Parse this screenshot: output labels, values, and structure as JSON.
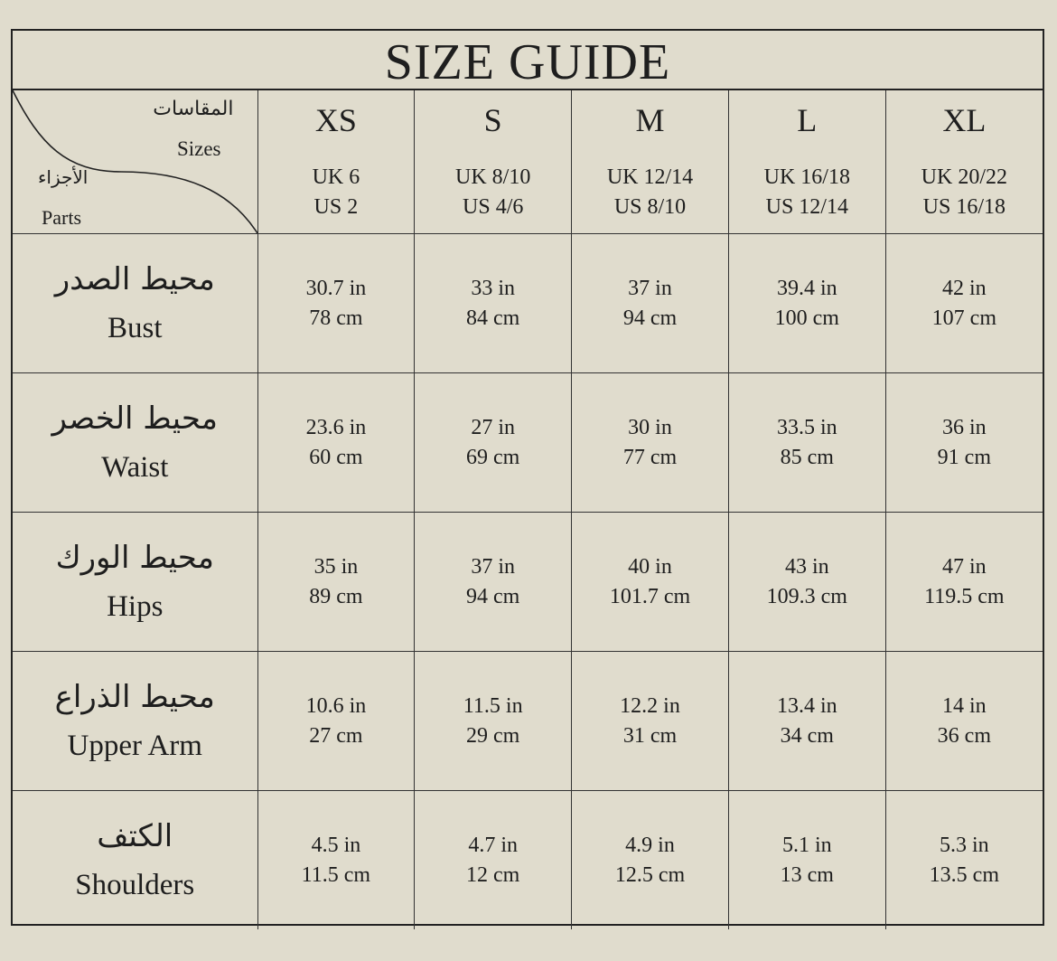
{
  "title": "SIZE GUIDE",
  "corner": {
    "sizes_ar": "المقاسات",
    "sizes_en": "Sizes",
    "parts_ar": "الأجزاء",
    "parts_en": "Parts"
  },
  "sizes": [
    {
      "label": "XS",
      "uk": "UK 6",
      "us": "US 2"
    },
    {
      "label": "S",
      "uk": "UK 8/10",
      "us": "US 4/6"
    },
    {
      "label": "M",
      "uk": "UK 12/14",
      "us": "US 8/10"
    },
    {
      "label": "L",
      "uk": "UK 16/18",
      "us": "US 12/14"
    },
    {
      "label": "XL",
      "uk": "UK 20/22",
      "us": "US 16/18"
    }
  ],
  "rows": [
    {
      "ar": "محيط الصدر",
      "en": "Bust",
      "values": [
        [
          "30.7 in",
          "78 cm"
        ],
        [
          "33 in",
          "84 cm"
        ],
        [
          "37 in",
          "94 cm"
        ],
        [
          "39.4 in",
          "100 cm"
        ],
        [
          "42 in",
          "107 cm"
        ]
      ]
    },
    {
      "ar": "محيط الخصر",
      "en": "Waist",
      "values": [
        [
          "23.6 in",
          "60 cm"
        ],
        [
          "27 in",
          "69 cm"
        ],
        [
          "30 in",
          "77 cm"
        ],
        [
          "33.5 in",
          "85 cm"
        ],
        [
          "36 in",
          "91 cm"
        ]
      ]
    },
    {
      "ar": "محيط الورك",
      "en": "Hips",
      "values": [
        [
          "35 in",
          "89 cm"
        ],
        [
          "37 in",
          "94 cm"
        ],
        [
          "40 in",
          "101.7 cm"
        ],
        [
          "43 in",
          "109.3 cm"
        ],
        [
          "47 in",
          "119.5 cm"
        ]
      ]
    },
    {
      "ar": "محيط الذراع",
      "en": "Upper Arm",
      "values": [
        [
          "10.6 in",
          "27 cm"
        ],
        [
          "11.5 in",
          "29 cm"
        ],
        [
          "12.2 in",
          "31 cm"
        ],
        [
          "13.4 in",
          "34 cm"
        ],
        [
          "14 in",
          "36 cm"
        ]
      ]
    },
    {
      "ar": "الكتف",
      "en": "Shoulders",
      "values": [
        [
          "4.5 in",
          "11.5 cm"
        ],
        [
          "4.7 in",
          "12 cm"
        ],
        [
          "4.9 in",
          "12.5 cm"
        ],
        [
          "5.1 in",
          "13 cm"
        ],
        [
          "5.3 in",
          "13.5 cm"
        ]
      ]
    }
  ]
}
